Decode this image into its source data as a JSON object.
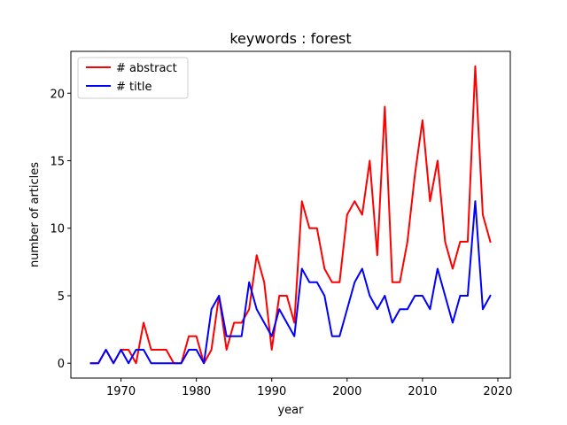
{
  "chart_data": {
    "type": "line",
    "title": "keywords : forest",
    "xlabel": "year",
    "ylabel": "number of articles",
    "xlim": [
      1963.35,
      2021.65
    ],
    "ylim": [
      -1.1,
      23.1
    ],
    "xticks": [
      1970,
      1980,
      1990,
      2000,
      2010,
      2020
    ],
    "yticks": [
      0,
      5,
      10,
      15,
      20
    ],
    "xtick_labels": [
      "1970",
      "1980",
      "1990",
      "2000",
      "2010",
      "2020"
    ],
    "ytick_labels": [
      "0",
      "5",
      "10",
      "15",
      "20"
    ],
    "grid": false,
    "legend_position": "top-left",
    "x": [
      1966,
      1967,
      1968,
      1969,
      1970,
      1971,
      1972,
      1973,
      1974,
      1975,
      1976,
      1977,
      1978,
      1979,
      1980,
      1981,
      1982,
      1983,
      1984,
      1985,
      1986,
      1987,
      1988,
      1989,
      1990,
      1991,
      1992,
      1993,
      1994,
      1995,
      1996,
      1997,
      1998,
      1999,
      2000,
      2001,
      2002,
      2003,
      2004,
      2005,
      2006,
      2007,
      2008,
      2009,
      2010,
      2011,
      2012,
      2013,
      2014,
      2015,
      2016,
      2017,
      2018,
      2019
    ],
    "series": [
      {
        "name": "# abstract",
        "color": "#ff0000",
        "values": [
          0,
          0,
          1,
          0,
          1,
          1,
          0,
          3,
          1,
          1,
          1,
          0,
          0,
          2,
          2,
          0,
          1,
          5,
          1,
          3,
          3,
          4,
          8,
          6,
          1,
          5,
          5,
          3,
          12,
          10,
          10,
          7,
          6,
          6,
          11,
          12,
          11,
          15,
          8,
          19,
          6,
          6,
          9,
          14,
          18,
          12,
          15,
          9,
          7,
          9,
          9,
          22,
          11,
          9
        ]
      },
      {
        "name": "# title",
        "color": "#0000ff",
        "values": [
          0,
          0,
          1,
          0,
          1,
          0,
          1,
          1,
          0,
          0,
          0,
          0,
          0,
          1,
          1,
          0,
          4,
          5,
          2,
          2,
          2,
          6,
          4,
          3,
          2,
          4,
          3,
          2,
          7,
          6,
          6,
          5,
          2,
          2,
          4,
          6,
          7,
          5,
          4,
          5,
          3,
          4,
          4,
          5,
          5,
          4,
          7,
          5,
          3,
          5,
          5,
          12,
          4,
          5
        ]
      }
    ]
  }
}
